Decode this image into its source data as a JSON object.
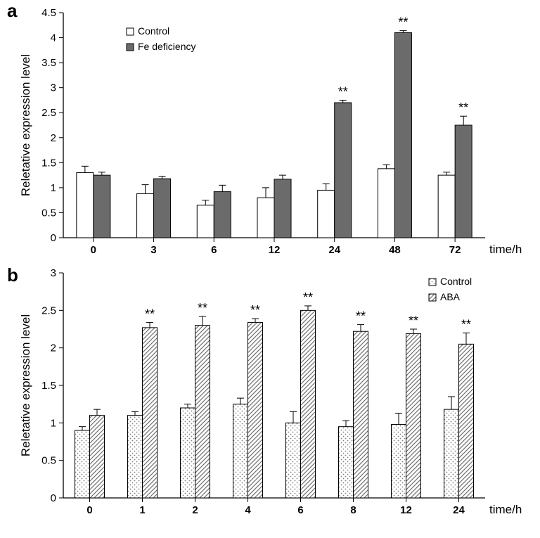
{
  "figure_width": 768,
  "figure_height": 765,
  "background_color": "#ffffff",
  "panel_a": {
    "label": "a",
    "label_fontsize": 26,
    "label_fontweight": "bold",
    "type": "bar",
    "ylabel": "Reletative expression level",
    "ylabel_fontsize": 17,
    "xlabel": "time/h",
    "xlabel_fontsize": 17,
    "categories": [
      "0",
      "3",
      "6",
      "12",
      "24",
      "48",
      "72"
    ],
    "series": [
      {
        "name": "Control",
        "fill": "#ffffff",
        "stroke": "#000000",
        "values": [
          1.3,
          0.88,
          0.65,
          0.8,
          0.95,
          1.38,
          1.25
        ],
        "errors": [
          0.13,
          0.18,
          0.1,
          0.2,
          0.13,
          0.08,
          0.06
        ]
      },
      {
        "name": "Fe deficiency",
        "fill": "#6b6b6b",
        "stroke": "#000000",
        "values": [
          1.25,
          1.18,
          0.92,
          1.17,
          2.7,
          4.1,
          2.25
        ],
        "errors": [
          0.06,
          0.05,
          0.13,
          0.08,
          0.05,
          0.04,
          0.18
        ]
      }
    ],
    "significance": [
      "",
      "",
      "",
      "",
      "**",
      "**",
      "**"
    ],
    "sig_fontsize": 18,
    "ylim": [
      0,
      4.5
    ],
    "ytick_step": 0.5,
    "tick_fontsize": 15,
    "legend_box_size": 10,
    "legend_fontsize": 14,
    "bar_group_width": 0.56,
    "axis_color": "#000000",
    "tick_length": 6
  },
  "panel_b": {
    "label": "b",
    "label_fontsize": 26,
    "label_fontweight": "bold",
    "type": "bar",
    "ylabel": "Reletative expression level",
    "ylabel_fontsize": 17,
    "xlabel": "time/h",
    "xlabel_fontsize": 17,
    "categories": [
      "0",
      "1",
      "2",
      "4",
      "6",
      "8",
      "12",
      "24"
    ],
    "series": [
      {
        "name": "Control",
        "pattern": "dots",
        "fill": "#ffffff",
        "pattern_color": "#808080",
        "stroke": "#000000",
        "values": [
          0.9,
          1.1,
          1.2,
          1.25,
          1.0,
          0.95,
          0.98,
          1.18
        ],
        "errors": [
          0.05,
          0.05,
          0.05,
          0.08,
          0.15,
          0.08,
          0.15,
          0.17
        ]
      },
      {
        "name": "ABA",
        "pattern": "hatch",
        "fill": "#ffffff",
        "pattern_color": "#707070",
        "stroke": "#000000",
        "values": [
          1.1,
          2.27,
          2.3,
          2.34,
          2.5,
          2.22,
          2.19,
          2.05
        ],
        "errors": [
          0.08,
          0.07,
          0.12,
          0.05,
          0.06,
          0.09,
          0.06,
          0.15
        ]
      }
    ],
    "significance": [
      "",
      "**",
      "**",
      "**",
      "**",
      "**",
      "**",
      "**"
    ],
    "sig_fontsize": 18,
    "ylim": [
      0,
      3
    ],
    "ytick_step": 0.5,
    "tick_fontsize": 15,
    "legend_box_size": 10,
    "legend_fontsize": 14,
    "bar_group_width": 0.56,
    "axis_color": "#000000",
    "tick_length": 6
  }
}
